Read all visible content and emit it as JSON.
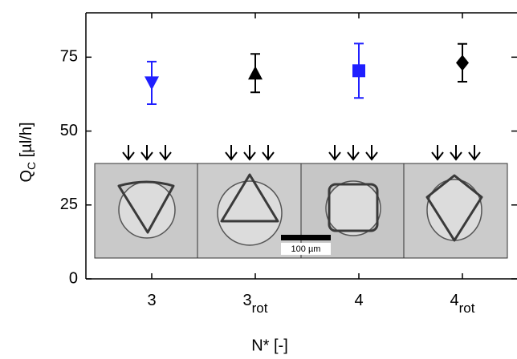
{
  "chart_data": {
    "type": "errorbar",
    "ylabel": {
      "base": "Q",
      "sub": "C",
      "rest": " [µl/h]"
    },
    "xlabel": "N* [-]",
    "categories": [
      {
        "base": "3"
      },
      {
        "base": "3",
        "sub": "rot"
      },
      {
        "base": "4"
      },
      {
        "base": "4",
        "sub": "rot"
      }
    ],
    "values": [
      66.3,
      69.6,
      70.4,
      73.1
    ],
    "errors": [
      7.2,
      6.5,
      9.2,
      6.4
    ],
    "colors": [
      "#1f1fff",
      "#000000",
      "#1f1fff",
      "#000000"
    ],
    "markers": [
      "triangle-down",
      "triangle-up",
      "square",
      "diamond"
    ],
    "ylim": [
      0,
      90
    ],
    "yticks": [
      0,
      25,
      50,
      75
    ],
    "scale_bar_label": "100 µm"
  }
}
